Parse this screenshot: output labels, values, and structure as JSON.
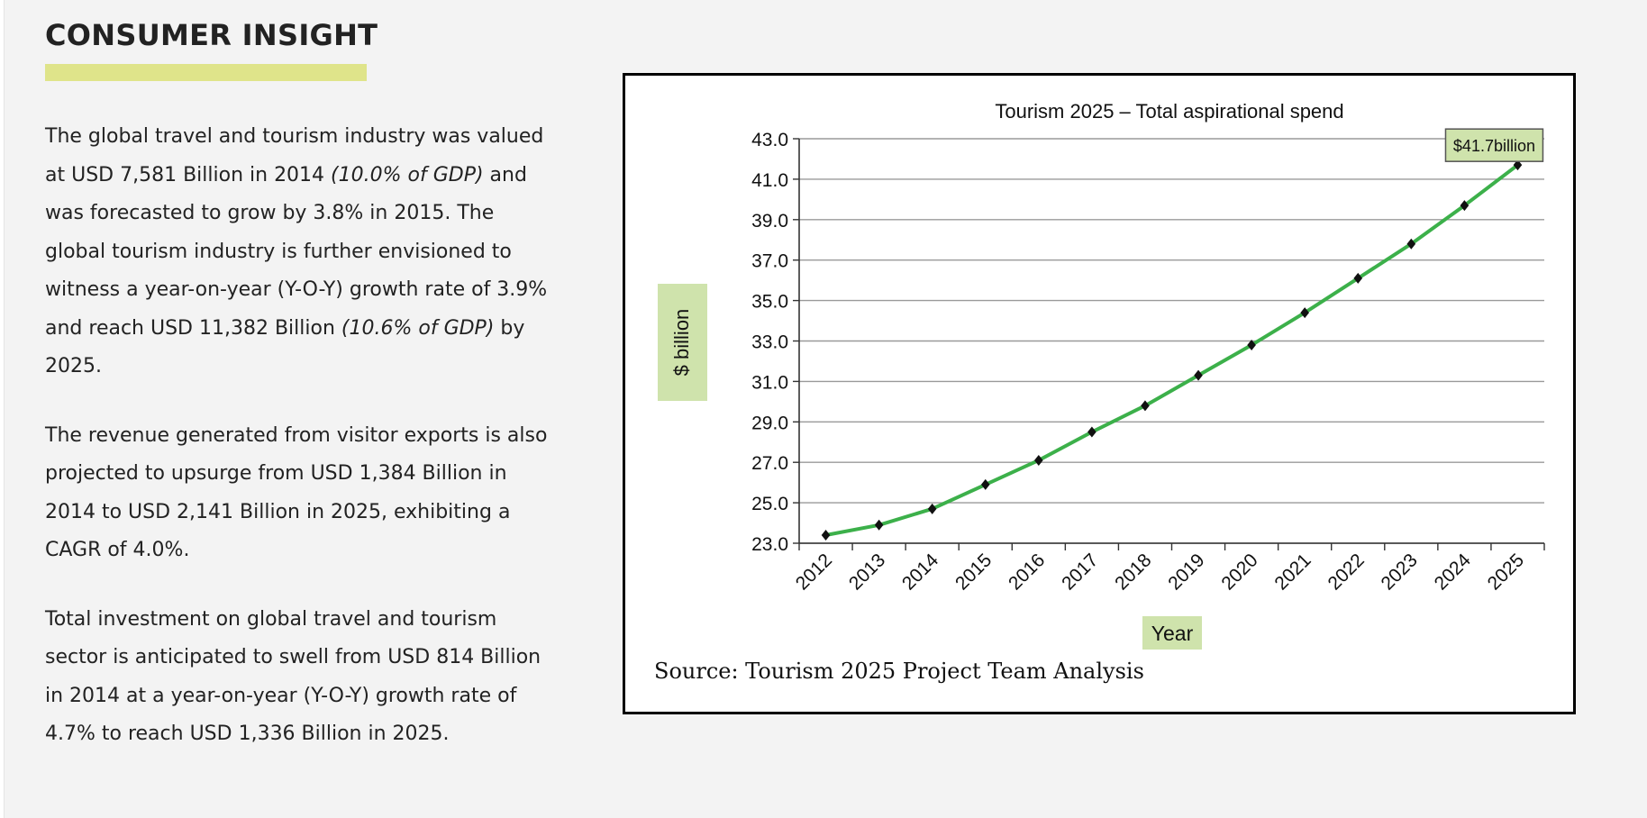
{
  "section": {
    "title": "CONSUMER INSIGHT",
    "accent_color": "#dfe48a"
  },
  "paragraphs": [
    {
      "segments": [
        {
          "text": "The global travel and tourism industry was valued at USD 7,581 Billion in 2014 ",
          "italic": false
        },
        {
          "text": "(10.0% of GDP)",
          "italic": true
        },
        {
          "text": " and was forecasted to grow by 3.8% in 2015. The global tourism industry is further envisioned to witness a year-on-year (Y-O-Y) growth rate of 3.9% and reach USD 11,382 Billion ",
          "italic": false
        },
        {
          "text": "(10.6% of GDP)",
          "italic": true
        },
        {
          "text": " by 2025.",
          "italic": false
        }
      ]
    },
    {
      "segments": [
        {
          "text": "The revenue generated from visitor exports is also projected to upsurge from USD 1,384 Billion in 2014 to USD 2,141 Billion in 2025, exhibiting a CAGR of 4.0%.",
          "italic": false
        }
      ]
    },
    {
      "segments": [
        {
          "text": "Total investment on global travel and tourism sector is anticipated to swell from USD 814 Billion in 2014 at a year-on-year (Y-O-Y) growth rate of 4.7% to reach USD 1,336 Billion in 2025.",
          "italic": false
        }
      ]
    }
  ],
  "chart_data": {
    "type": "line",
    "title": "Tourism 2025 – Total aspirational spend",
    "xlabel": "Year",
    "ylabel": "$ billion",
    "x": [
      "2012",
      "2013",
      "2014",
      "2015",
      "2016",
      "2017",
      "2018",
      "2019",
      "2020",
      "2021",
      "2022",
      "2023",
      "2024",
      "2025"
    ],
    "y": [
      23.4,
      23.9,
      24.7,
      25.9,
      27.1,
      28.5,
      29.8,
      31.3,
      32.8,
      34.4,
      36.1,
      37.8,
      39.7,
      41.7
    ],
    "y_ticks": [
      "23.0",
      "25.0",
      "27.0",
      "29.0",
      "31.0",
      "33.0",
      "35.0",
      "37.0",
      "39.0",
      "41.0",
      "43.0"
    ],
    "ylim": [
      23,
      43
    ],
    "grid": "horizontal",
    "line_color": "#3cb04a",
    "marker": "diamond",
    "marker_color": "#111111",
    "label_fill": "#cfe3ac",
    "annotation": {
      "text": "$41.7billion",
      "x": "2025",
      "y": 41.7
    },
    "source": "Source: Tourism 2025 Project Team Analysis"
  }
}
